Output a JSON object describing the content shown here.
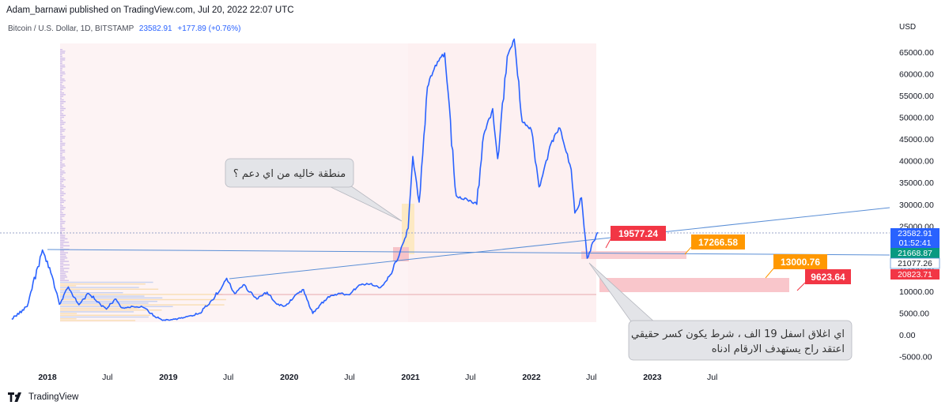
{
  "header": {
    "published": "Adam_barnawi published on TradingView.com, Jul 20, 2022 22:07 UTC",
    "symbol": "Bitcoin / U.S. Dollar, 1D, BITSTAMP",
    "last_price": "23582.91",
    "change": "+177.89 (+0.76%)"
  },
  "brand": {
    "name": "TradingView"
  },
  "colors": {
    "price_line": "#2962ff",
    "trend_line": "#5b8fd6",
    "red_label": "#f23645",
    "orange_label": "#ff9800",
    "green_label": "#089981",
    "blue_label": "#2962ff",
    "zone_pink": "#fbe4e6",
    "zone_light": "#fdeeee"
  },
  "chart_data": {
    "type": "line",
    "title": "",
    "xlabel": "",
    "ylabel": "USD",
    "currency_label": "USD",
    "x_ticks": [
      "2018",
      "Jul",
      "2019",
      "Jul",
      "2020",
      "Jul",
      "2021",
      "Jul",
      "2022",
      "Jul",
      "2023",
      "Jul"
    ],
    "y_ticks": [
      "65000.00",
      "60000.00",
      "55000.00",
      "50000.00",
      "45000.00",
      "40000.00",
      "35000.00",
      "30000.00",
      "25000.00",
      "20000.00",
      "15000.00",
      "10000.00",
      "5000.00",
      "0.00",
      "-5000.00"
    ],
    "y_tick_values": [
      65000,
      60000,
      55000,
      50000,
      45000,
      40000,
      35000,
      30000,
      25000,
      20000,
      15000,
      10000,
      5000,
      0,
      -5000
    ],
    "ylim": [
      -6500,
      70500
    ],
    "grid": false,
    "series": [
      {
        "x": [
          "2017-09-15",
          "2017-11-01",
          "2017-12-17",
          "2018-01-15",
          "2018-02-06",
          "2018-03-05",
          "2018-04-06",
          "2018-05-05",
          "2018-06-28",
          "2018-07-24",
          "2018-08-14",
          "2018-09-15",
          "2018-10-15",
          "2018-11-20",
          "2018-12-15",
          "2019-01-20",
          "2019-02-20",
          "2019-04-05",
          "2019-05-15",
          "2019-06-26",
          "2019-07-20",
          "2019-08-15",
          "2019-09-25",
          "2019-10-26",
          "2019-11-25",
          "2019-12-18",
          "2020-01-15",
          "2020-02-13",
          "2020-03-12",
          "2020-04-01",
          "2020-05-05",
          "2020-06-01",
          "2020-07-01",
          "2020-08-01",
          "2020-09-01",
          "2020-10-01",
          "2020-11-01",
          "2020-12-01",
          "2020-12-25",
          "2021-01-08",
          "2021-01-27",
          "2021-02-21",
          "2021-03-13",
          "2021-04-14",
          "2021-05-19",
          "2021-06-22",
          "2021-07-20",
          "2021-08-10",
          "2021-09-06",
          "2021-09-21",
          "2021-10-20",
          "2021-11-10",
          "2021-12-04",
          "2022-01-01",
          "2022-01-24",
          "2022-03-01",
          "2022-03-28",
          "2022-05-01",
          "2022-05-12",
          "2022-06-01",
          "2022-06-13",
          "2022-06-18",
          "2022-07-08",
          "2022-07-20"
        ],
        "y": [
          3600,
          6500,
          19500,
          13500,
          7000,
          11000,
          6900,
          9500,
          5900,
          8200,
          6200,
          6500,
          6400,
          4300,
          3300,
          3600,
          4000,
          5000,
          8000,
          13000,
          9500,
          11500,
          8200,
          9800,
          7000,
          6600,
          8700,
          10400,
          4900,
          6700,
          9000,
          9500,
          9200,
          11500,
          11700,
          10800,
          13800,
          19200,
          24500,
          41000,
          30500,
          57000,
          61000,
          64800,
          32000,
          31000,
          30000,
          46000,
          52000,
          40500,
          64000,
          68000,
          49000,
          47000,
          34000,
          44000,
          47500,
          38000,
          28000,
          31500,
          22000,
          17600,
          21500,
          23580
        ]
      }
    ],
    "horizontal_lines": [
      {
        "label": "",
        "value": 23582.91
      },
      {
        "label": "",
        "value": 21077.26
      },
      {
        "label": "",
        "value": 9500
      }
    ],
    "price_labels": [
      {
        "text": "23582.91",
        "sub": "01:52:41",
        "color": "blue"
      },
      {
        "text": "21668.87",
        "color": "green"
      },
      {
        "text": "21077.26",
        "color": "white"
      },
      {
        "text": "20823.71",
        "color": "red"
      }
    ],
    "target_labels": [
      {
        "text": "19577.24",
        "color": "red"
      },
      {
        "text": "17266.58",
        "color": "orange"
      },
      {
        "text": "13000.76",
        "color": "orange"
      },
      {
        "text": "9623.64",
        "color": "red"
      }
    ],
    "callouts": [
      {
        "lines": [
          "منطقة خاليه من اي دعم ؟"
        ]
      },
      {
        "lines": [
          "اي اغلاق اسفل 19 الف ، شرط يكون كسر حقيقي",
          "اعتقد راح يستهدف الارقام ادناه"
        ]
      }
    ]
  }
}
